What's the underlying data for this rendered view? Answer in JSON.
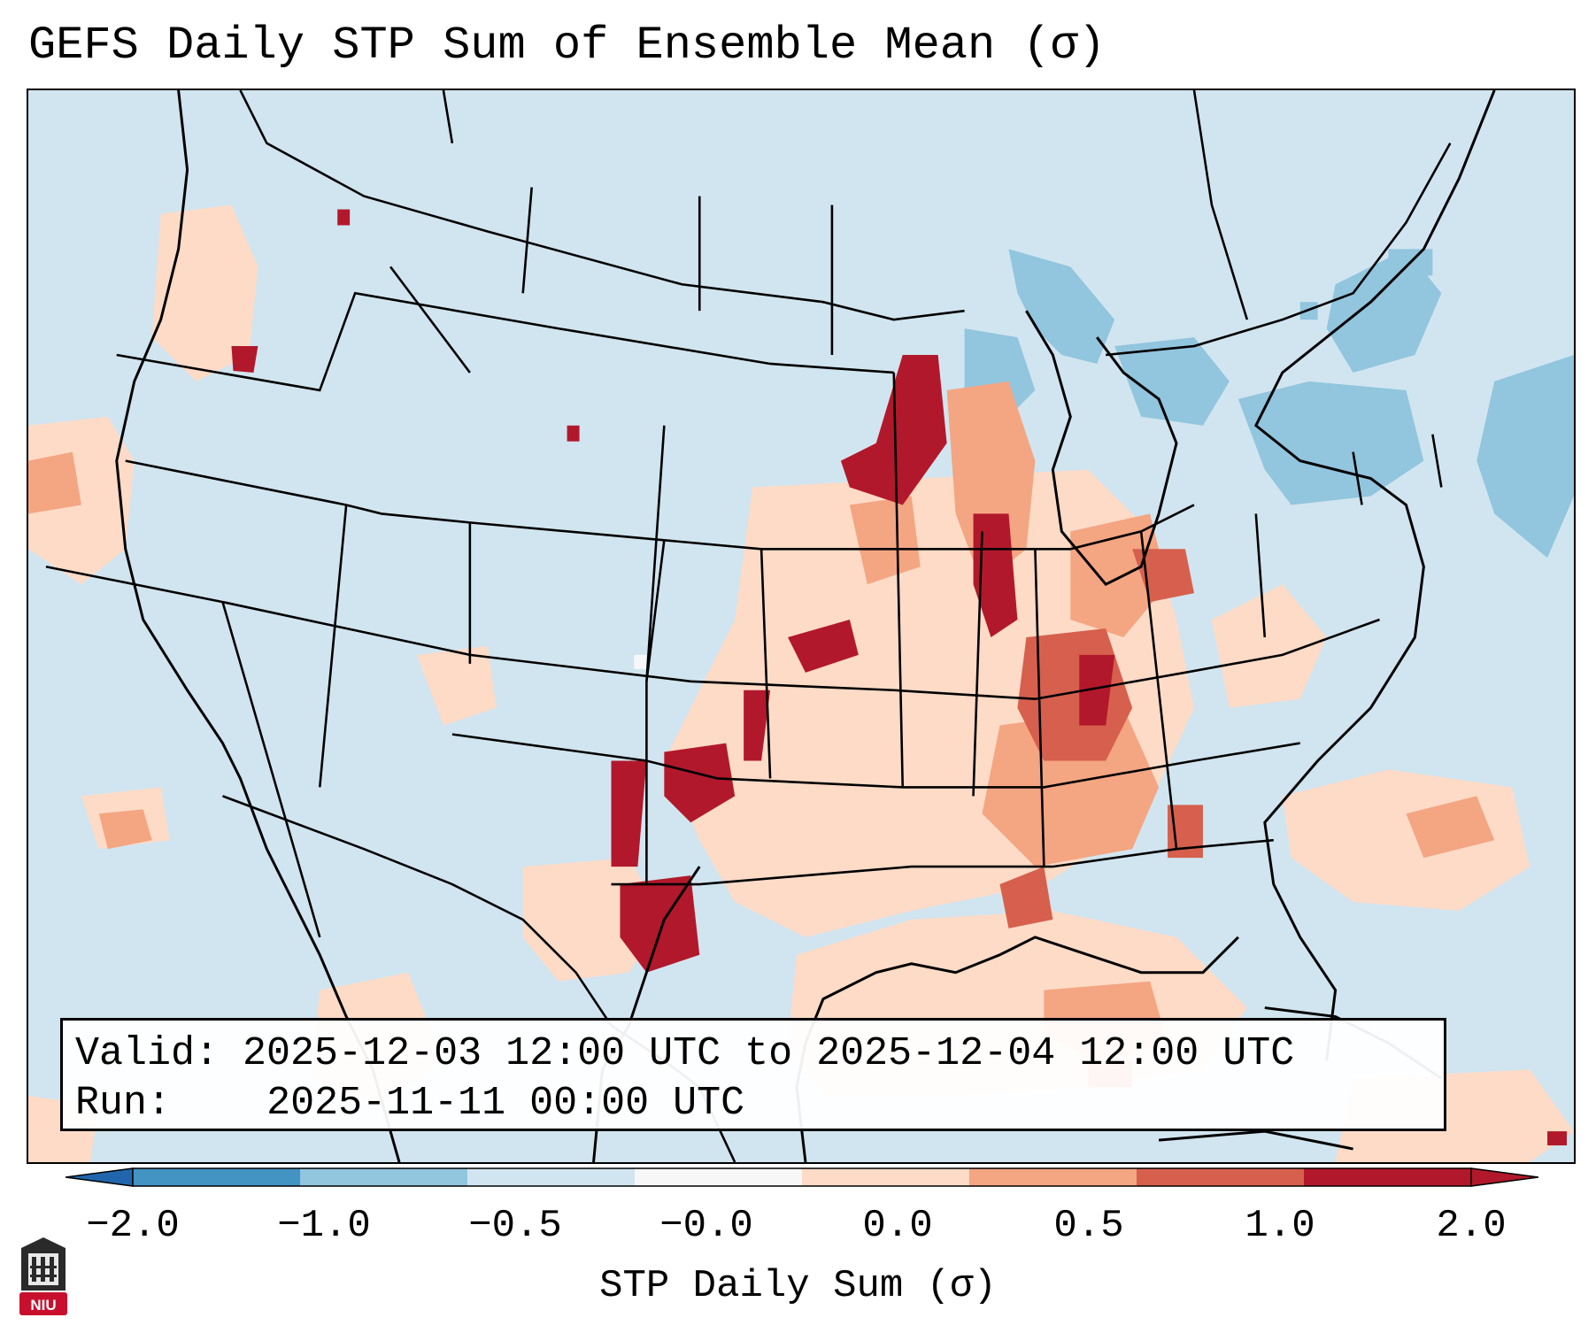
{
  "title": "GEFS Daily STP Sum of Ensemble Mean (σ)",
  "info": {
    "valid_label": "Valid:",
    "valid_value": "2025-12-03 12:00 UTC to 2025-12-04 12:00 UTC",
    "run_label": "Run:",
    "run_value": "2025-11-11 00:00 UTC"
  },
  "colorbar": {
    "label": "STP Daily Sum (σ)",
    "ticks": [
      "−2.0",
      "−1.0",
      "−0.5",
      "−0.0",
      "0.0",
      "0.5",
      "1.0",
      "2.0"
    ],
    "bins": [
      {
        "range": "-2.0 to -1.0",
        "color": "#4393c3"
      },
      {
        "range": "-1.0 to -0.5",
        "color": "#92c5de"
      },
      {
        "range": "-0.5 to -0.0",
        "color": "#d1e5f0"
      },
      {
        "range": "-0.0 to 0.0",
        "color": "#f7f7f7"
      },
      {
        "range": "0.0 to 0.5",
        "color": "#fddbc7"
      },
      {
        "range": "0.5 to 1.0",
        "color": "#f4a582"
      },
      {
        "range": "1.0 to 2.0",
        "color": "#d6604d"
      },
      {
        "range": "above 2.0",
        "color": "#b2182b"
      }
    ],
    "under_color": "#2166ac",
    "over_color": "#b2182b"
  },
  "logo": {
    "text": "NIU",
    "color": "#c8102e"
  },
  "map_colors": {
    "background": "#d1e5f0",
    "neg_light": "#92c5de",
    "pos_light": "#fddbc7",
    "pos_mid": "#f4a582",
    "pos_high": "#d6604d",
    "pos_max": "#b2182b"
  }
}
